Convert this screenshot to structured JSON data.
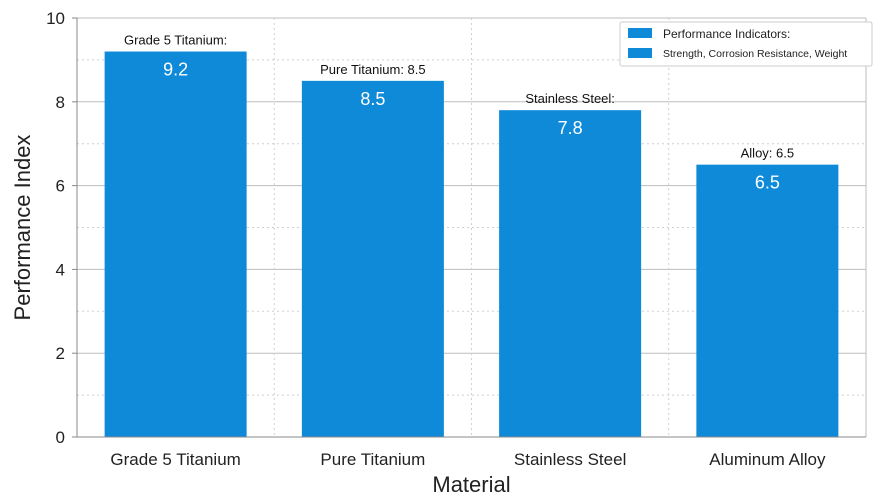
{
  "chart_data": {
    "type": "bar",
    "title": "",
    "xlabel": "Material",
    "ylabel": "Performance Index",
    "categories": [
      "Grade 5 Titanium",
      "Pure Titanium",
      "Stainless Steel",
      "Aluminum Alloy"
    ],
    "values": [
      9.2,
      8.5,
      7.8,
      6.5
    ],
    "value_labels": [
      "9.2",
      "8.5",
      "7.8",
      "6.5"
    ],
    "bar_top_labels": [
      "Grade 5 Titanium:",
      "Pure Titanium: 8.5",
      "Stainless Steel:",
      "Alloy: 6.5"
    ],
    "ylim": [
      0,
      10
    ],
    "yticks": [
      0,
      2,
      4,
      6,
      8,
      10
    ],
    "grid": true,
    "legend": {
      "placement": "top-right",
      "entries": [
        "Performance Indicators:",
        "Strength, Corrosion Resistance, Weight"
      ]
    },
    "colors": {
      "bar": "#0f8ad8",
      "grid": "#bdbdbd",
      "axis": "#888888"
    }
  }
}
